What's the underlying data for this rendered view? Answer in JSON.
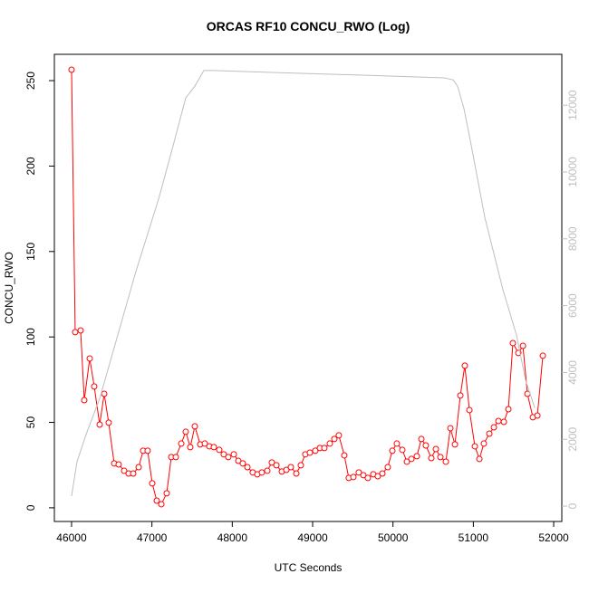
{
  "chart_data": {
    "type": "line",
    "title": "ORCAS RF10 CONCU_RWO (Log)",
    "x_label": "UTC Seconds",
    "y_label": "CONCU_RWO",
    "xlim": [
      45786,
      52101
    ],
    "xticks": [
      46000,
      47000,
      48000,
      49000,
      50000,
      51000,
      52000
    ],
    "ylim": [
      -8,
      265.4
    ],
    "yticks": [
      0,
      50,
      100,
      150,
      200,
      250
    ],
    "y2lim": [
      -460,
      13523
    ],
    "y2ticks": [
      0,
      2000,
      4000,
      6000,
      8000,
      10000,
      12000
    ],
    "y2_color": "#bebebe",
    "series": [
      {
        "color": "#ff0000",
        "markers": true,
        "x": [
          46000,
          46045,
          46113,
          46158,
          46226,
          46282,
          46350,
          46406,
          46462,
          46530,
          46586,
          46654,
          46710,
          46767,
          46835,
          46891,
          46947,
          47004,
          47060,
          47117,
          47184,
          47241,
          47297,
          47365,
          47421,
          47477,
          47534,
          47601,
          47658,
          47714,
          47771,
          47838,
          47894,
          47950,
          48019,
          48075,
          48131,
          48188,
          48255,
          48312,
          48368,
          48436,
          48492,
          48549,
          48616,
          48673,
          48729,
          48797,
          48853,
          48909,
          48966,
          49033,
          49090,
          49146,
          49214,
          49270,
          49326,
          49394,
          49450,
          49507,
          49574,
          49631,
          49687,
          49755,
          49811,
          49868,
          49935,
          49992,
          50048,
          50116,
          50173,
          50229,
          50297,
          50353,
          50409,
          50477,
          50534,
          50590,
          50658,
          50714,
          50771,
          50838,
          50894,
          50951,
          51019,
          51075,
          51131,
          51199,
          51256,
          51312,
          51380,
          51436,
          51492,
          51560,
          51617,
          51673,
          51741,
          51797,
          51865
        ],
        "values": [
          256.4,
          102.8,
          103.8,
          63,
          87.4,
          71,
          48.7,
          66.7,
          49.8,
          26,
          25.4,
          21.7,
          20.1,
          20.1,
          23.8,
          33.4,
          33.4,
          14.3,
          4.2,
          2.1,
          8.5,
          29.7,
          29.7,
          37.6,
          44.5,
          35.5,
          47.7,
          37.1,
          37.6,
          36,
          35.5,
          33.9,
          31.3,
          29.7,
          31.3,
          27.5,
          26,
          23.8,
          20.7,
          19.6,
          20.7,
          21.7,
          26.5,
          24.9,
          21.2,
          22.2,
          23.8,
          20.1,
          24.9,
          31.3,
          32.3,
          33.4,
          35,
          35,
          37.6,
          40.3,
          42.4,
          30.7,
          17.5,
          18,
          20.7,
          19.1,
          17.5,
          19.6,
          18.5,
          20.1,
          23.8,
          33.4,
          37.6,
          33.9,
          27,
          28.6,
          30.2,
          40.3,
          36.5,
          29.1,
          34.4,
          29.7,
          27,
          46.6,
          37.1,
          65.7,
          83.2,
          57.2,
          36,
          28.6,
          37.6,
          43.4,
          47.1,
          50.8,
          50.3,
          57.7,
          96.4,
          90.6,
          94.8,
          66.7,
          53,
          54,
          89
        ]
      },
      {
        "color": "#bebebe",
        "axis": "y2",
        "markers": false,
        "x": [
          46000,
          46068,
          46180,
          46350,
          46575,
          46800,
          47083,
          47252,
          47421,
          47534,
          47647,
          47759,
          48492,
          49620,
          50635,
          50748,
          50804,
          50883,
          50973,
          51143,
          51368,
          51537,
          51650,
          51763
        ],
        "values": [
          300,
          1330,
          2140,
          3220,
          5120,
          7020,
          9190,
          10680,
          12220,
          12570,
          13040,
          13040,
          12980,
          12900,
          12820,
          12760,
          12570,
          11900,
          10810,
          8640,
          6480,
          5120,
          3770,
          2950
        ]
      }
    ]
  }
}
